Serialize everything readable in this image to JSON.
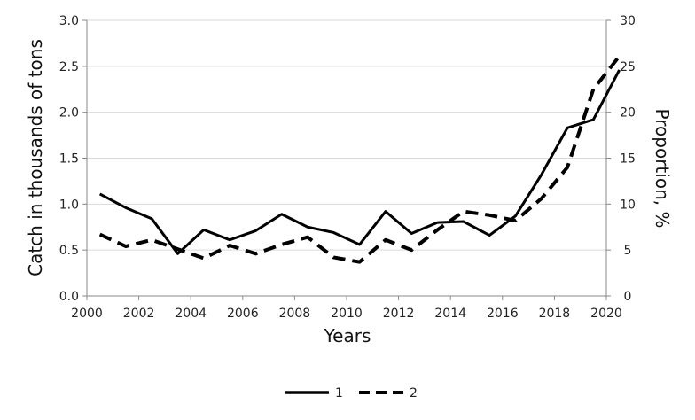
{
  "chart_data": {
    "type": "line",
    "title": "",
    "xlabel": "Years",
    "ylabel_left": "Catch in thousands of tons",
    "ylabel_right": "Proportion, %",
    "x": [
      2000,
      2001,
      2002,
      2003,
      2004,
      2005,
      2006,
      2007,
      2008,
      2009,
      2010,
      2011,
      2012,
      2013,
      2014,
      2015,
      2016,
      2017,
      2018,
      2019,
      2020
    ],
    "xlim": [
      2000,
      2020
    ],
    "x_ticks": [
      "2000",
      "2002",
      "2004",
      "2006",
      "2008",
      "2010",
      "2012",
      "2014",
      "2016",
      "2018",
      "2020"
    ],
    "ylim_left": [
      0,
      3.0
    ],
    "y_ticks_left": [
      "0.0",
      "0.5",
      "1.0",
      "1.5",
      "2.0",
      "2.5",
      "3.0"
    ],
    "ylim_right": [
      0,
      30
    ],
    "y_ticks_right": [
      "0",
      "5",
      "10",
      "15",
      "20",
      "25",
      "30"
    ],
    "grid": "horizontal",
    "legend_position": "bottom-center",
    "series": [
      {
        "name": "1",
        "axis": "left",
        "style": "solid",
        "color": "#000000",
        "values": [
          1.11,
          0.96,
          0.84,
          0.46,
          0.72,
          0.61,
          0.71,
          0.89,
          0.75,
          0.69,
          0.56,
          0.92,
          0.68,
          0.8,
          0.81,
          0.66,
          0.87,
          1.32,
          1.83,
          1.92,
          2.46
        ]
      },
      {
        "name": "2",
        "axis": "right",
        "style": "dashed",
        "color": "#000000",
        "values": [
          6.7,
          5.4,
          6.1,
          5.1,
          4.1,
          5.5,
          4.6,
          5.6,
          6.4,
          4.2,
          3.7,
          6.1,
          5.0,
          7.2,
          9.2,
          8.8,
          8.2,
          10.6,
          14.0,
          22.5,
          26.1
        ]
      }
    ]
  }
}
